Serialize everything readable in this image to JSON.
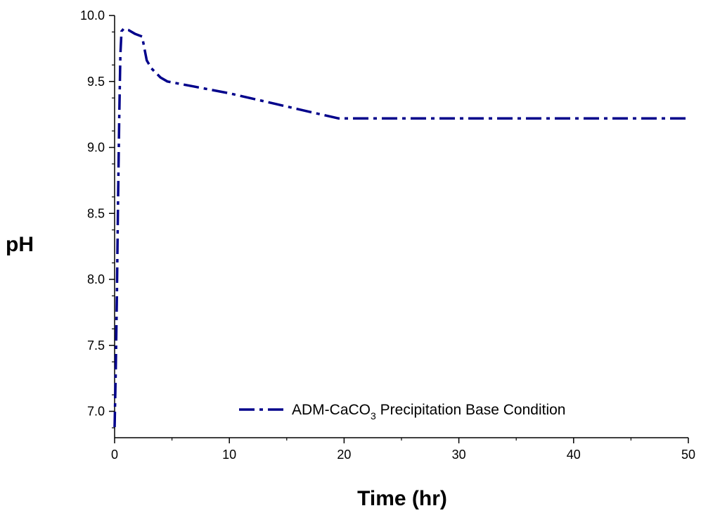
{
  "chart_data": {
    "type": "line",
    "xlabel": "Time  (hr)",
    "ylabel": "pH",
    "xlim": [
      0,
      50
    ],
    "ylim": [
      6.8,
      10.0
    ],
    "x_ticks": [
      "0",
      "10",
      "20",
      "30",
      "40",
      "50"
    ],
    "y_ticks": [
      "7.0",
      "7.5",
      "8.0",
      "8.5",
      "9.0",
      "9.5",
      "10.0"
    ],
    "grid": false,
    "legend_position": "bottom-right",
    "series": [
      {
        "legend_main": "ADM-CaCO",
        "legend_sub": "3",
        "legend_rest": " Precipitation Base Condition",
        "color": "#00008b",
        "line_style": "dash-dot",
        "x": [
          0,
          0.1,
          0.2,
          0.3,
          0.4,
          0.5,
          0.6,
          0.8,
          1.2,
          1.8,
          2.4,
          2.6,
          2.8,
          3.2,
          4.0,
          4.6,
          7.0,
          10.0,
          14.0,
          17.0,
          19.5,
          21.0,
          25,
          30,
          35,
          40,
          45,
          50
        ],
        "y": [
          6.88,
          7.3,
          7.9,
          8.6,
          9.2,
          9.7,
          9.88,
          9.9,
          9.89,
          9.86,
          9.84,
          9.75,
          9.66,
          9.6,
          9.53,
          9.5,
          9.46,
          9.41,
          9.33,
          9.27,
          9.22,
          9.22,
          9.22,
          9.22,
          9.22,
          9.22,
          9.22,
          9.22
        ]
      }
    ]
  }
}
